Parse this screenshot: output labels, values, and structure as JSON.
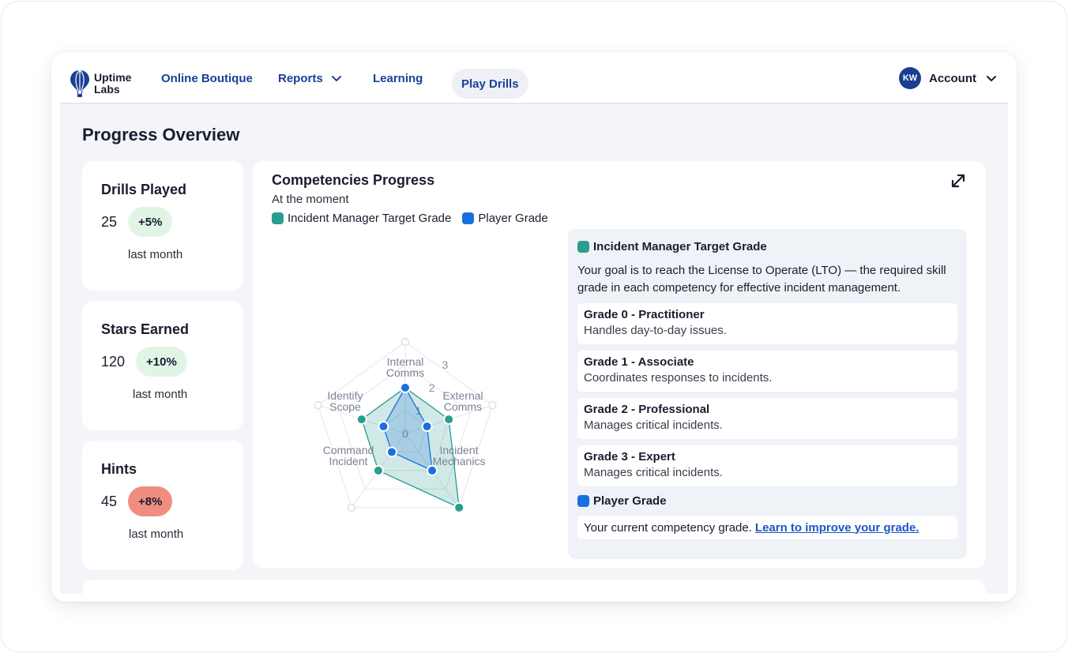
{
  "nav": {
    "logo_line1": "Uptime",
    "logo_line2": "Labs",
    "links": [
      "Online Boutique",
      "Reports",
      "Learning",
      "Play Drills"
    ],
    "account": {
      "initials": "KW",
      "label": "Account"
    }
  },
  "page": {
    "title": "Progress Overview"
  },
  "stats": [
    {
      "title": "Drills Played",
      "value": "25",
      "change": "+5%",
      "direction": "up",
      "period": "last month"
    },
    {
      "title": "Stars Earned",
      "value": "120",
      "change": "+10%",
      "direction": "up",
      "period": "last month"
    },
    {
      "title": "Hints",
      "value": "45",
      "change": "+8%",
      "direction": "down",
      "period": "last month"
    }
  ],
  "chart": {
    "title": "Competencies Progress",
    "subtitle": "At the moment",
    "legend": [
      "Incident Manager Target Grade",
      "Player Grade"
    ]
  },
  "chart_data": {
    "type": "radar",
    "axes": [
      [
        "Internal",
        "Comms"
      ],
      [
        "External",
        "Comms"
      ],
      [
        "Incident",
        "Mechanics"
      ],
      [
        "Command",
        "Incident"
      ],
      [
        "Identify",
        "Scope"
      ]
    ],
    "rlim": [
      0,
      4
    ],
    "tick_labels": [
      "0",
      "1",
      "2",
      "3"
    ],
    "series": [
      {
        "name": "Incident Manager Target Grade",
        "values": [
          2,
          2,
          4,
          2,
          2
        ],
        "color": "#2a9d8f"
      },
      {
        "name": "Player Grade",
        "values": [
          2,
          1,
          2,
          1,
          1
        ],
        "color": "#1a6fe0"
      }
    ]
  },
  "info": {
    "target_heading": "Incident Manager Target Grade",
    "target_desc": "Your goal is to reach the License to Operate (LTO) — the required skill grade in each competency for effective incident management.",
    "grades": [
      {
        "title": "Grade 0 - Practitioner",
        "desc": "Handles day-to-day issues."
      },
      {
        "title": "Grade 1 - Associate",
        "desc": "Coordinates responses to incidents."
      },
      {
        "title": "Grade 2 - Professional",
        "desc": "Manages critical incidents."
      },
      {
        "title": "Grade 3 - Expert",
        "desc": "Manages critical incidents."
      }
    ],
    "player_heading": "Player Grade",
    "player_desc": "Your current competency grade.",
    "player_link": "Learn to improve your grade."
  },
  "colors": {
    "brand": "#1c3f96",
    "target": "#2a9d8f",
    "player": "#1a6fe0",
    "badge_up": "#e0f5e6",
    "badge_down": "#f08d81"
  }
}
